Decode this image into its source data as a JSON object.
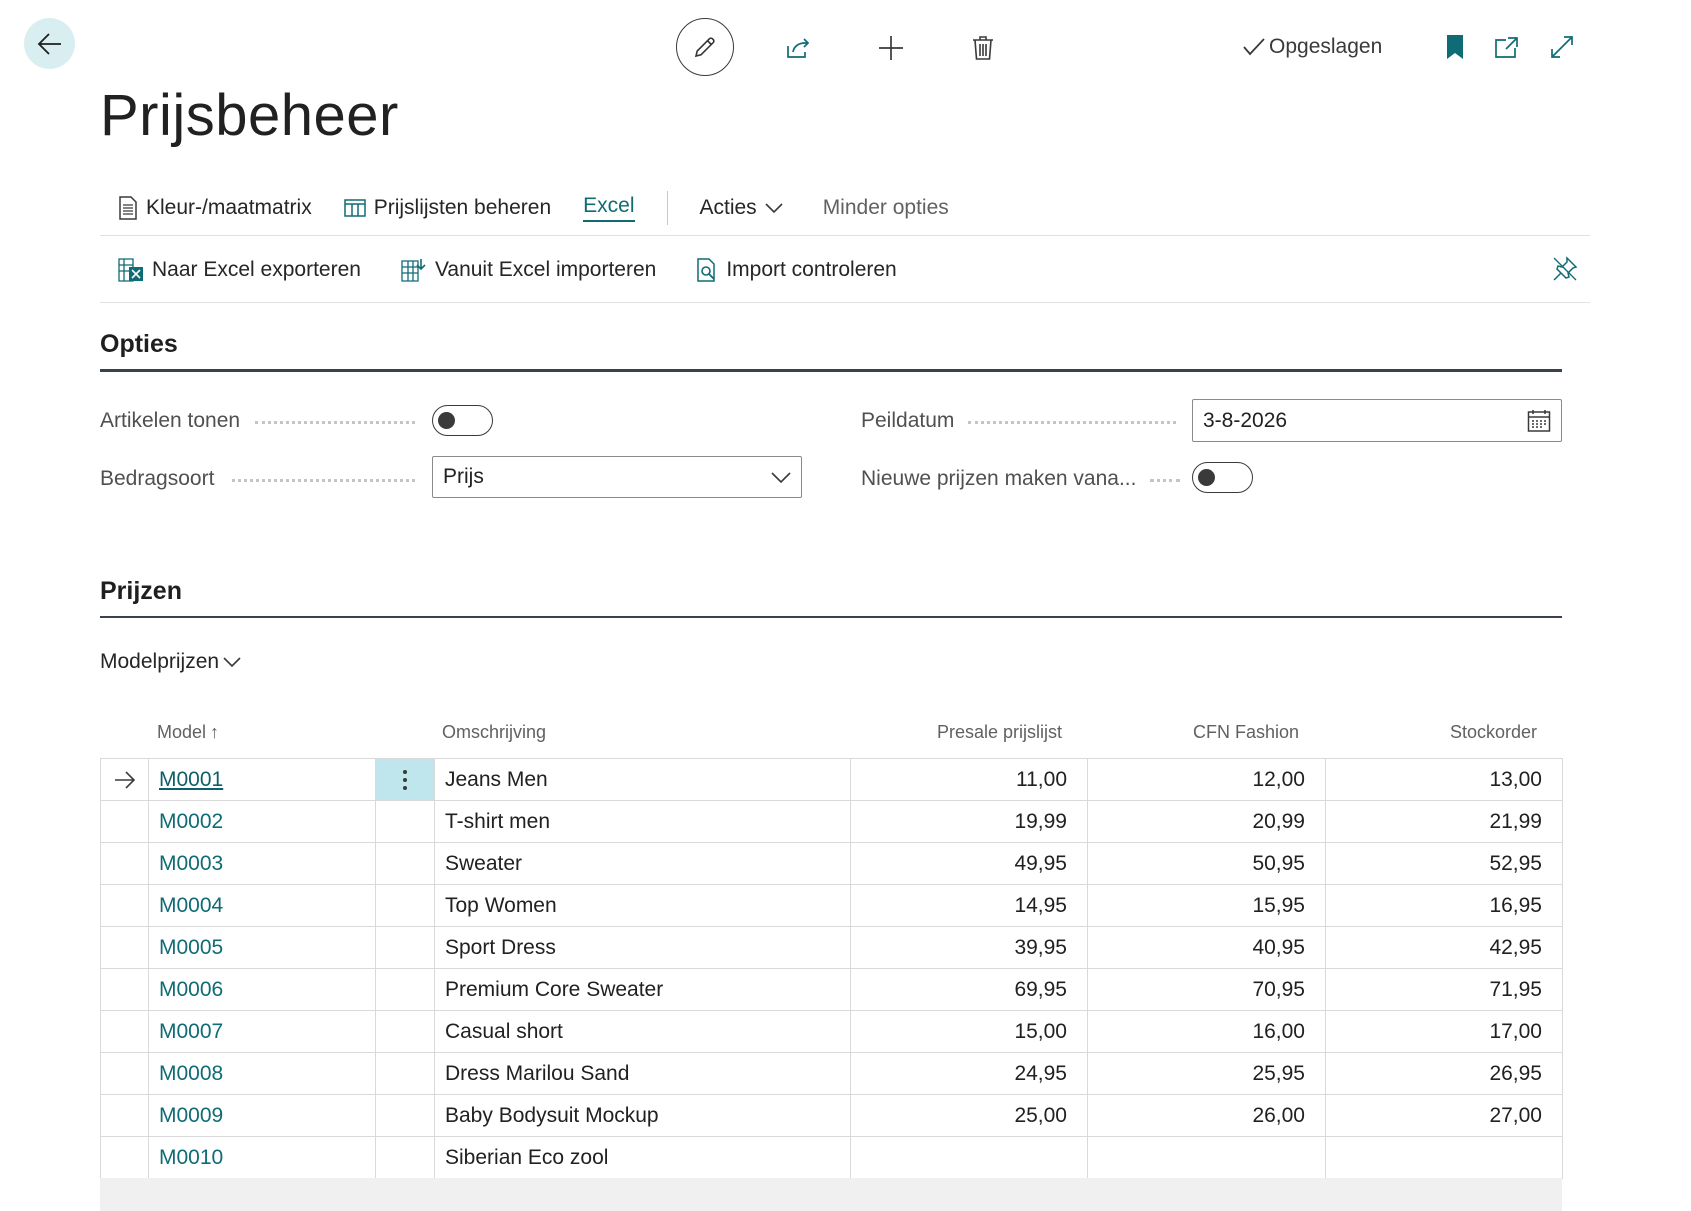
{
  "toolbar": {
    "saved_label": "Opgeslagen"
  },
  "page": {
    "title": "Prijsbeheer"
  },
  "actions_primary": [
    {
      "label": "Kleur-/maatmatrix",
      "icon": "document-icon"
    },
    {
      "label": "Prijslijsten beheren",
      "icon": "table-columns-icon"
    },
    {
      "label": "Excel",
      "selected": true
    },
    {
      "label": "Acties",
      "has_dropdown": true
    },
    {
      "label": "Minder opties"
    }
  ],
  "actions_excel": [
    {
      "label": "Naar Excel exporteren",
      "icon": "excel-export-icon"
    },
    {
      "label": "Vanuit Excel importeren",
      "icon": "excel-import-icon"
    },
    {
      "label": "Import controleren",
      "icon": "document-search-icon"
    }
  ],
  "options": {
    "section_title": "Opties",
    "show_items_label": "Artikelen tonen",
    "show_items_value": false,
    "amount_type_label": "Bedragsoort",
    "amount_type_value": "Prijs",
    "reference_date_label": "Peildatum",
    "reference_date_value": "3-8-2026",
    "create_new_prices_label": "Nieuwe prijzen maken vana...",
    "create_new_prices_value": false
  },
  "prices": {
    "section_title": "Prijzen",
    "view_selector": "Modelprijzen",
    "columns": [
      "Model",
      "Omschrijving",
      "Presale prijslijst",
      "CFN Fashion",
      "Stockorder"
    ],
    "sort_indicator": "↑",
    "rows": [
      {
        "model": "M0001",
        "description": "Jeans Men",
        "presale": "11,00",
        "cfn": "12,00",
        "stock": "13,00"
      },
      {
        "model": "M0002",
        "description": "T-shirt men",
        "presale": "19,99",
        "cfn": "20,99",
        "stock": "21,99"
      },
      {
        "model": "M0003",
        "description": "Sweater",
        "presale": "49,95",
        "cfn": "50,95",
        "stock": "52,95"
      },
      {
        "model": "M0004",
        "description": "Top Women",
        "presale": "14,95",
        "cfn": "15,95",
        "stock": "16,95"
      },
      {
        "model": "M0005",
        "description": "Sport Dress",
        "presale": "39,95",
        "cfn": "40,95",
        "stock": "42,95"
      },
      {
        "model": "M0006",
        "description": "Premium Core Sweater",
        "presale": "69,95",
        "cfn": "70,95",
        "stock": "71,95"
      },
      {
        "model": "M0007",
        "description": "Casual short",
        "presale": "15,00",
        "cfn": "16,00",
        "stock": "17,00"
      },
      {
        "model": "M0008",
        "description": "Dress Marilou Sand",
        "presale": "24,95",
        "cfn": "25,95",
        "stock": "26,95"
      },
      {
        "model": "M0009",
        "description": "Baby Bodysuit Mockup",
        "presale": "25,00",
        "cfn": "26,00",
        "stock": "27,00"
      },
      {
        "model": "M0010",
        "description": "Siberian Eco zool",
        "presale": "",
        "cfn": "",
        "stock": ""
      }
    ]
  },
  "colors": {
    "accent": "#0f6c74",
    "back_button_bg": "#d9eef0",
    "selected_cell_bg": "#bfe6ec"
  }
}
